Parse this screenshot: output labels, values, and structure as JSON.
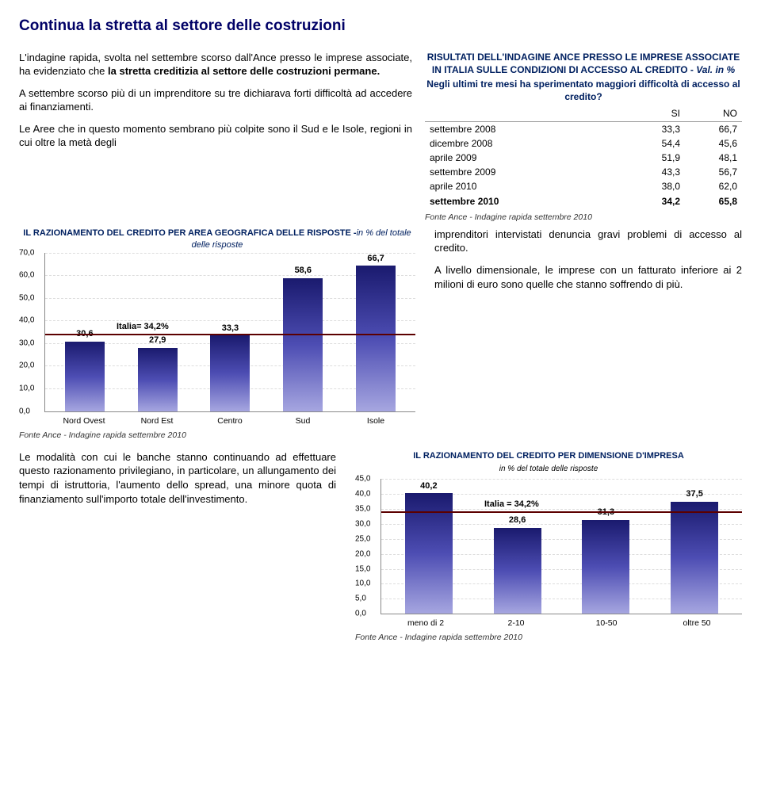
{
  "title": "Continua la stretta al settore delle costruzioni",
  "upper_left": {
    "p1_pre": "L'indagine rapida, svolta nel settembre scorso dall'Ance presso le imprese associate, ha evidenziato che ",
    "p1_bold": "la stretta creditizia al settore delle costruzioni permane.",
    "p2": "A settembre scorso più di un imprenditore su tre dichiarava forti difficoltà ad accedere ai finanziamenti.",
    "p3": "Le Aree che in questo momento sembrano più colpite sono il Sud e le Isole, regioni in cui oltre la metà degli"
  },
  "table": {
    "title": "RISULTATI DELL'INDAGINE ANCE PRESSO LE IMPRESE ASSOCIATE IN ITALIA SULLE CONDIZIONI DI ACCESSO AL CREDITO - ",
    "title_ital": "Val. in %",
    "question": "Negli ultimi tre mesi ha sperimentato maggiori difficoltà di accesso al credito?",
    "hdr_si": "SI",
    "hdr_no": "NO",
    "rows": [
      {
        "label": "settembre 2008",
        "si": "33,3",
        "no": "66,7",
        "bold": false
      },
      {
        "label": "dicembre 2008",
        "si": "54,4",
        "no": "45,6",
        "bold": false
      },
      {
        "label": "aprile 2009",
        "si": "51,9",
        "no": "48,1",
        "bold": false
      },
      {
        "label": "settembre 2009",
        "si": "43,3",
        "no": "56,7",
        "bold": false
      },
      {
        "label": "aprile 2010",
        "si": "38,0",
        "no": "62,0",
        "bold": false
      },
      {
        "label": "settembre 2010",
        "si": "34,2",
        "no": "65,8",
        "bold": true
      }
    ],
    "source": "Fonte Ance - Indagine rapida settembre 2010"
  },
  "mid_right": {
    "p1": "imprenditori intervistati denuncia gravi problemi di accesso al credito.",
    "p2": "A livello dimensionale, le imprese con un fatturato inferiore ai 2 milioni di euro sono quelle che stanno soffrendo di più."
  },
  "chart1": {
    "title": "IL RAZIONAMENTO DEL CREDITO PER AREA GEOGRAFICA DELLE RISPOSTE -",
    "sub": "in % del totale delle risposte",
    "ymax": 70,
    "yticks": [
      "70,0",
      "60,0",
      "50,0",
      "40,0",
      "30,0",
      "20,0",
      "10,0",
      "0,0"
    ],
    "ref_label": "Italia= 34,2%",
    "ref_value": 34.2,
    "bars": [
      {
        "label": "Nord Ovest",
        "value": 30.6,
        "disp": "30,6"
      },
      {
        "label": "Nord Est",
        "value": 27.9,
        "disp": "27,9"
      },
      {
        "label": "Centro",
        "value": 33.3,
        "disp": "33,3"
      },
      {
        "label": "Sud",
        "value": 58.6,
        "disp": "58,6"
      },
      {
        "label": "Isole",
        "value": 66.7,
        "disp": "66,7"
      }
    ],
    "source": "Fonte Ance - Indagine rapida settembre 2010"
  },
  "lower_left": {
    "p": "Le modalità con cui le banche stanno continuando ad effettuare questo razionamento privilegiano, in particolare, un allungamento dei tempi di istruttoria, l'aumento dello spread, una minore quota di finanziamento sull'importo totale dell'investimento."
  },
  "chart2": {
    "title": "IL RAZIONAMENTO DEL CREDITO PER DIMENSIONE D'IMPRESA",
    "sub": "in % del totale delle risposte",
    "ymax": 45,
    "yticks": [
      "45,0",
      "40,0",
      "35,0",
      "30,0",
      "25,0",
      "20,0",
      "15,0",
      "10,0",
      "5,0",
      "0,0"
    ],
    "ref_label": "Italia = 34,2%",
    "ref_value": 34.2,
    "bars": [
      {
        "label": "meno di 2",
        "value": 40.2,
        "disp": "40,2"
      },
      {
        "label": "2-10",
        "value": 28.6,
        "disp": "28,6"
      },
      {
        "label": "10-50",
        "value": 31.3,
        "disp": "31,3"
      },
      {
        "label": "oltre 50",
        "value": 37.5,
        "disp": "37,5"
      }
    ],
    "source": "Fonte Ance - Indagine rapida settembre 2010"
  }
}
